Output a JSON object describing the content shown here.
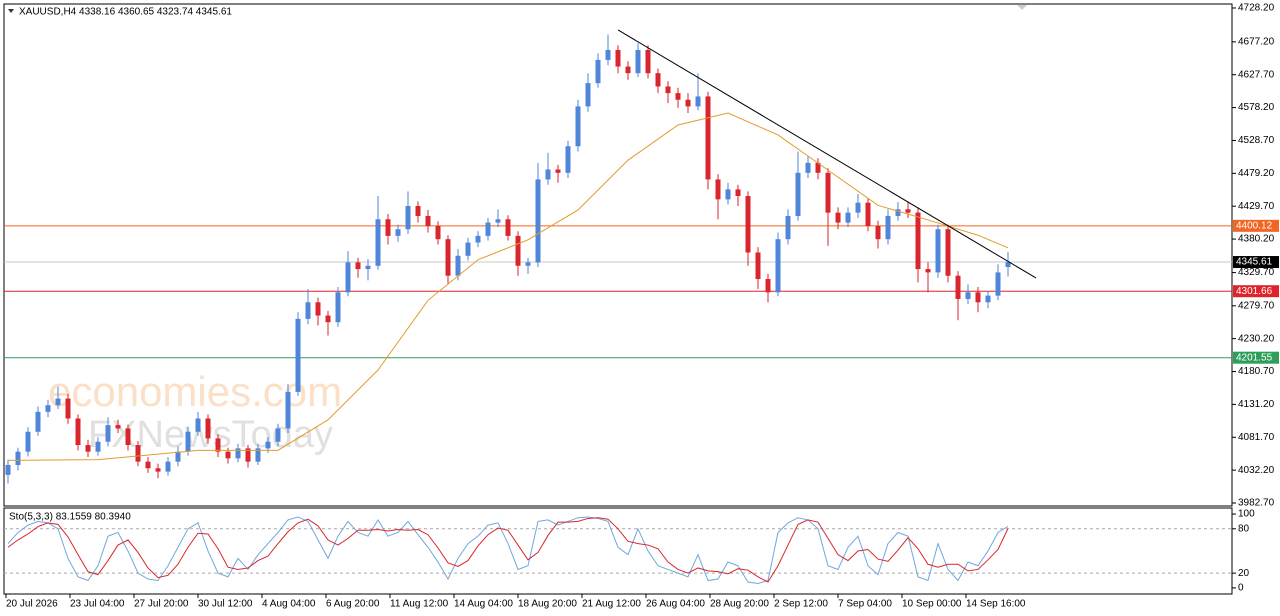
{
  "chart_data": {
    "type": "candlestick",
    "title": "XAUUSD,H4  4338.16 4360.65 4323.74 4345.61",
    "up_color": "#4f86d9",
    "down_color": "#d8262c",
    "xlim": [
      -0.4,
      122.4
    ],
    "ylim": [
      3978.2,
      4734.2
    ],
    "yticks": [
      {
        "value": 4728.2,
        "label": "4728.20"
      },
      {
        "value": 4677.2,
        "label": "4677.20"
      },
      {
        "value": 4627.7,
        "label": "4627.70"
      },
      {
        "value": 4578.2,
        "label": "4578.20"
      },
      {
        "value": 4528.7,
        "label": "4528.70"
      },
      {
        "value": 4479.2,
        "label": "4479.20"
      },
      {
        "value": 4429.7,
        "label": "4429.70"
      },
      {
        "value": 4380.2,
        "label": "4380.20"
      },
      {
        "value": 4329.7,
        "label": "4329.70"
      },
      {
        "value": 4279.7,
        "label": "4279.70"
      },
      {
        "value": 4230.2,
        "label": "4230.20"
      },
      {
        "value": 4180.7,
        "label": "4180.70"
      },
      {
        "value": 4131.2,
        "label": "4131.20"
      },
      {
        "value": 4081.7,
        "label": "4081.70"
      },
      {
        "value": 4032.2,
        "label": "4032.20"
      },
      {
        "value": 3982.7,
        "label": "3982.70"
      }
    ],
    "xticks": [
      {
        "value": -0.2,
        "label": "20 Jul 2026"
      },
      {
        "value": 6.2,
        "label": "23 Jul 04:00"
      },
      {
        "value": 12.6,
        "label": "27 Jul 20:00"
      },
      {
        "value": 19,
        "label": "30 Jul 12:00"
      },
      {
        "value": 25.4,
        "label": "4 Aug 04:00"
      },
      {
        "value": 31.8,
        "label": "6 Aug 20:00"
      },
      {
        "value": 38.2,
        "label": "11 Aug 12:00"
      },
      {
        "value": 44.6,
        "label": "14 Aug 04:00"
      },
      {
        "value": 51,
        "label": "18 Aug 20:00"
      },
      {
        "value": 57.4,
        "label": "21 Aug 12:00"
      },
      {
        "value": 63.8,
        "label": "26 Aug 04:00"
      },
      {
        "value": 70.2,
        "label": "28 Aug 20:00"
      },
      {
        "value": 76.6,
        "label": "2 Sep 12:00"
      },
      {
        "value": 83,
        "label": "7 Sep 04:00"
      },
      {
        "value": 89.4,
        "label": "10 Sep 00:00"
      },
      {
        "value": 95.8,
        "label": "14 Sep 16:00"
      }
    ],
    "candles": [
      [
        4025,
        4048,
        4012,
        4040
      ],
      [
        4040,
        4066,
        4032,
        4060
      ],
      [
        4060,
        4097,
        4053,
        4090
      ],
      [
        4090,
        4128,
        4084,
        4120
      ],
      [
        4120,
        4138,
        4112,
        4130
      ],
      [
        4130,
        4158,
        4124,
        4140
      ],
      [
        4140,
        4147,
        4102,
        4110
      ],
      [
        4110,
        4116,
        4062,
        4070
      ],
      [
        4070,
        4078,
        4052,
        4060
      ],
      [
        4060,
        4082,
        4054,
        4075
      ],
      [
        4075,
        4112,
        4068,
        4100
      ],
      [
        4100,
        4108,
        4088,
        4095
      ],
      [
        4095,
        4101,
        4062,
        4070
      ],
      [
        4070,
        4076,
        4038,
        4045
      ],
      [
        4045,
        4052,
        4028,
        4035
      ],
      [
        4035,
        4042,
        4020,
        4030
      ],
      [
        4030,
        4052,
        4024,
        4045
      ],
      [
        4045,
        4068,
        4038,
        4060
      ],
      [
        4060,
        4098,
        4054,
        4090
      ],
      [
        4090,
        4120,
        4084,
        4110
      ],
      [
        4110,
        4116,
        4072,
        4080
      ],
      [
        4080,
        4086,
        4052,
        4060
      ],
      [
        4060,
        4066,
        4042,
        4050
      ],
      [
        4050,
        4072,
        4044,
        4065
      ],
      [
        4065,
        4070,
        4036,
        4045
      ],
      [
        4045,
        4072,
        4040,
        4065
      ],
      [
        4065,
        4082,
        4058,
        4075
      ],
      [
        4075,
        4102,
        4068,
        4095
      ],
      [
        4095,
        4162,
        4088,
        4150
      ],
      [
        4150,
        4270,
        4144,
        4260
      ],
      [
        4260,
        4305,
        4252,
        4285
      ],
      [
        4285,
        4292,
        4250,
        4265
      ],
      [
        4265,
        4272,
        4235,
        4255
      ],
      [
        4255,
        4308,
        4248,
        4300
      ],
      [
        4300,
        4362,
        4294,
        4345
      ],
      [
        4345,
        4352,
        4322,
        4335
      ],
      [
        4335,
        4350,
        4318,
        4340
      ],
      [
        4340,
        4445,
        4334,
        4410
      ],
      [
        4410,
        4418,
        4372,
        4385
      ],
      [
        4385,
        4402,
        4376,
        4395
      ],
      [
        4395,
        4452,
        4388,
        4430
      ],
      [
        4430,
        4437,
        4405,
        4415
      ],
      [
        4415,
        4424,
        4390,
        4400
      ],
      [
        4400,
        4407,
        4372,
        4380
      ],
      [
        4380,
        4386,
        4312,
        4325
      ],
      [
        4325,
        4365,
        4318,
        4355
      ],
      [
        4355,
        4382,
        4348,
        4375
      ],
      [
        4375,
        4392,
        4368,
        4385
      ],
      [
        4385,
        4412,
        4378,
        4405
      ],
      [
        4405,
        4425,
        4398,
        4410
      ],
      [
        4410,
        4416,
        4378,
        4385
      ],
      [
        4385,
        4392,
        4325,
        4340
      ],
      [
        4340,
        4352,
        4328,
        4345
      ],
      [
        4345,
        4495,
        4338,
        4470
      ],
      [
        4470,
        4510,
        4462,
        4485
      ],
      [
        4485,
        4492,
        4465,
        4480
      ],
      [
        4480,
        4528,
        4472,
        4520
      ],
      [
        4520,
        4590,
        4512,
        4580
      ],
      [
        4580,
        4630,
        4572,
        4615
      ],
      [
        4615,
        4660,
        4608,
        4650
      ],
      [
        4650,
        4688,
        4642,
        4665
      ],
      [
        4665,
        4672,
        4630,
        4640
      ],
      [
        4640,
        4648,
        4620,
        4630
      ],
      [
        4630,
        4675,
        4624,
        4665
      ],
      [
        4665,
        4672,
        4622,
        4630
      ],
      [
        4630,
        4637,
        4600,
        4610
      ],
      [
        4610,
        4618,
        4585,
        4600
      ],
      [
        4600,
        4608,
        4578,
        4590
      ],
      [
        4590,
        4600,
        4570,
        4580
      ],
      [
        4580,
        4630,
        4574,
        4595
      ],
      [
        4595,
        4602,
        4455,
        4470
      ],
      [
        4470,
        4478,
        4410,
        4440
      ],
      [
        4440,
        4465,
        4432,
        4455
      ],
      [
        4455,
        4462,
        4430,
        4445
      ],
      [
        4445,
        4452,
        4340,
        4360
      ],
      [
        4360,
        4368,
        4305,
        4320
      ],
      [
        4320,
        4328,
        4285,
        4300
      ],
      [
        4300,
        4390,
        4294,
        4380
      ],
      [
        4380,
        4425,
        4372,
        4415
      ],
      [
        4415,
        4512,
        4408,
        4480
      ],
      [
        4480,
        4505,
        4472,
        4495
      ],
      [
        4495,
        4502,
        4470,
        4480
      ],
      [
        4480,
        4487,
        4370,
        4420
      ],
      [
        4420,
        4428,
        4395,
        4405
      ],
      [
        4405,
        4428,
        4398,
        4420
      ],
      [
        4420,
        4448,
        4412,
        4435
      ],
      [
        4435,
        4442,
        4392,
        4400
      ],
      [
        4400,
        4408,
        4366,
        4380
      ],
      [
        4380,
        4425,
        4372,
        4415
      ],
      [
        4415,
        4436,
        4408,
        4425
      ],
      [
        4425,
        4437,
        4412,
        4420
      ],
      [
        4420,
        4428,
        4315,
        4335
      ],
      [
        4335,
        4345,
        4300,
        4330
      ],
      [
        4330,
        4402,
        4322,
        4395
      ],
      [
        4395,
        4402,
        4315,
        4325
      ],
      [
        4325,
        4332,
        4258,
        4290
      ],
      [
        4290,
        4312,
        4282,
        4300
      ],
      [
        4300,
        4308,
        4270,
        4285
      ],
      [
        4285,
        4302,
        4276,
        4295
      ],
      [
        4295,
        4342,
        4288,
        4330
      ],
      [
        4338.16,
        4360.65,
        4323.74,
        4345.61
      ]
    ],
    "moving_average": {
      "color": "#e39b2a",
      "x": [
        0,
        9,
        19,
        27,
        32,
        37,
        42,
        47,
        52,
        57,
        62,
        67,
        72,
        77,
        82,
        87,
        92,
        97,
        100
      ],
      "values": [
        4047,
        4048,
        4062,
        4062,
        4108,
        4183,
        4288,
        4349,
        4379,
        4424,
        4499,
        4552,
        4570,
        4537,
        4484,
        4431,
        4409,
        4386,
        4367
      ]
    },
    "trendline": {
      "color": "#000000",
      "x": [
        61,
        102.8
      ],
      "values": [
        4695.1,
        4321.6
      ]
    },
    "levels": [
      {
        "value": 4400.12,
        "color": "#f26522",
        "label_color": "#f26522"
      },
      {
        "value": 4345.61,
        "color": "#c8c8c8",
        "label_color": "#000000"
      },
      {
        "value": 4301.66,
        "color": "#e0232a",
        "label_color": "#e0232a"
      },
      {
        "value": 4201.55,
        "color": "#2e9e5b",
        "label_color": "#2e9e5b"
      }
    ],
    "watermark": [
      "economies.com",
      "FXNewsToday"
    ],
    "oscillator": {
      "title": "Sto(5,3,3) 83.1559 80.3940",
      "ylim": [
        -9.6,
        106.8
      ],
      "yticks": [
        0,
        20,
        80,
        100
      ],
      "series": [
        {
          "color": "#6fa8dc",
          "values": [
            60,
            75,
            85,
            90,
            88,
            80,
            40,
            15,
            10,
            30,
            70,
            75,
            50,
            20,
            12,
            10,
            30,
            55,
            80,
            88,
            50,
            20,
            15,
            40,
            25,
            45,
            60,
            75,
            92,
            96,
            90,
            65,
            40,
            70,
            90,
            75,
            70,
            92,
            70,
            75,
            90,
            72,
            55,
            35,
            12,
            40,
            60,
            70,
            85,
            88,
            60,
            25,
            30,
            90,
            92,
            85,
            90,
            95,
            96,
            94,
            90,
            55,
            45,
            80,
            50,
            30,
            25,
            20,
            15,
            45,
            10,
            12,
            35,
            30,
            8,
            6,
            10,
            75,
            88,
            95,
            92,
            80,
            30,
            25,
            55,
            70,
            30,
            18,
            60,
            75,
            70,
            15,
            10,
            60,
            25,
            10,
            35,
            30,
            50,
            75,
            83.1559
          ]
        },
        {
          "color": "#d8262c",
          "values": [
            55,
            65,
            73,
            83,
            88,
            86,
            69,
            45,
            22,
            18,
            37,
            58,
            65,
            48,
            27,
            14,
            17,
            32,
            55,
            74,
            73,
            53,
            28,
            25,
            27,
            37,
            43,
            60,
            76,
            88,
            93,
            84,
            65,
            58,
            67,
            78,
            78,
            79,
            77,
            79,
            78,
            79,
            72,
            54,
            34,
            29,
            37,
            57,
            72,
            81,
            78,
            58,
            38,
            48,
            71,
            89,
            89,
            90,
            94,
            95,
            93,
            80,
            63,
            60,
            58,
            53,
            35,
            25,
            20,
            27,
            23,
            22,
            19,
            26,
            24,
            15,
            8,
            30,
            58,
            86,
            92,
            89,
            67,
            45,
            37,
            50,
            52,
            39,
            36,
            51,
            68,
            53,
            32,
            28,
            32,
            32,
            23,
            25,
            38,
            52,
            80.394
          ]
        }
      ]
    }
  }
}
